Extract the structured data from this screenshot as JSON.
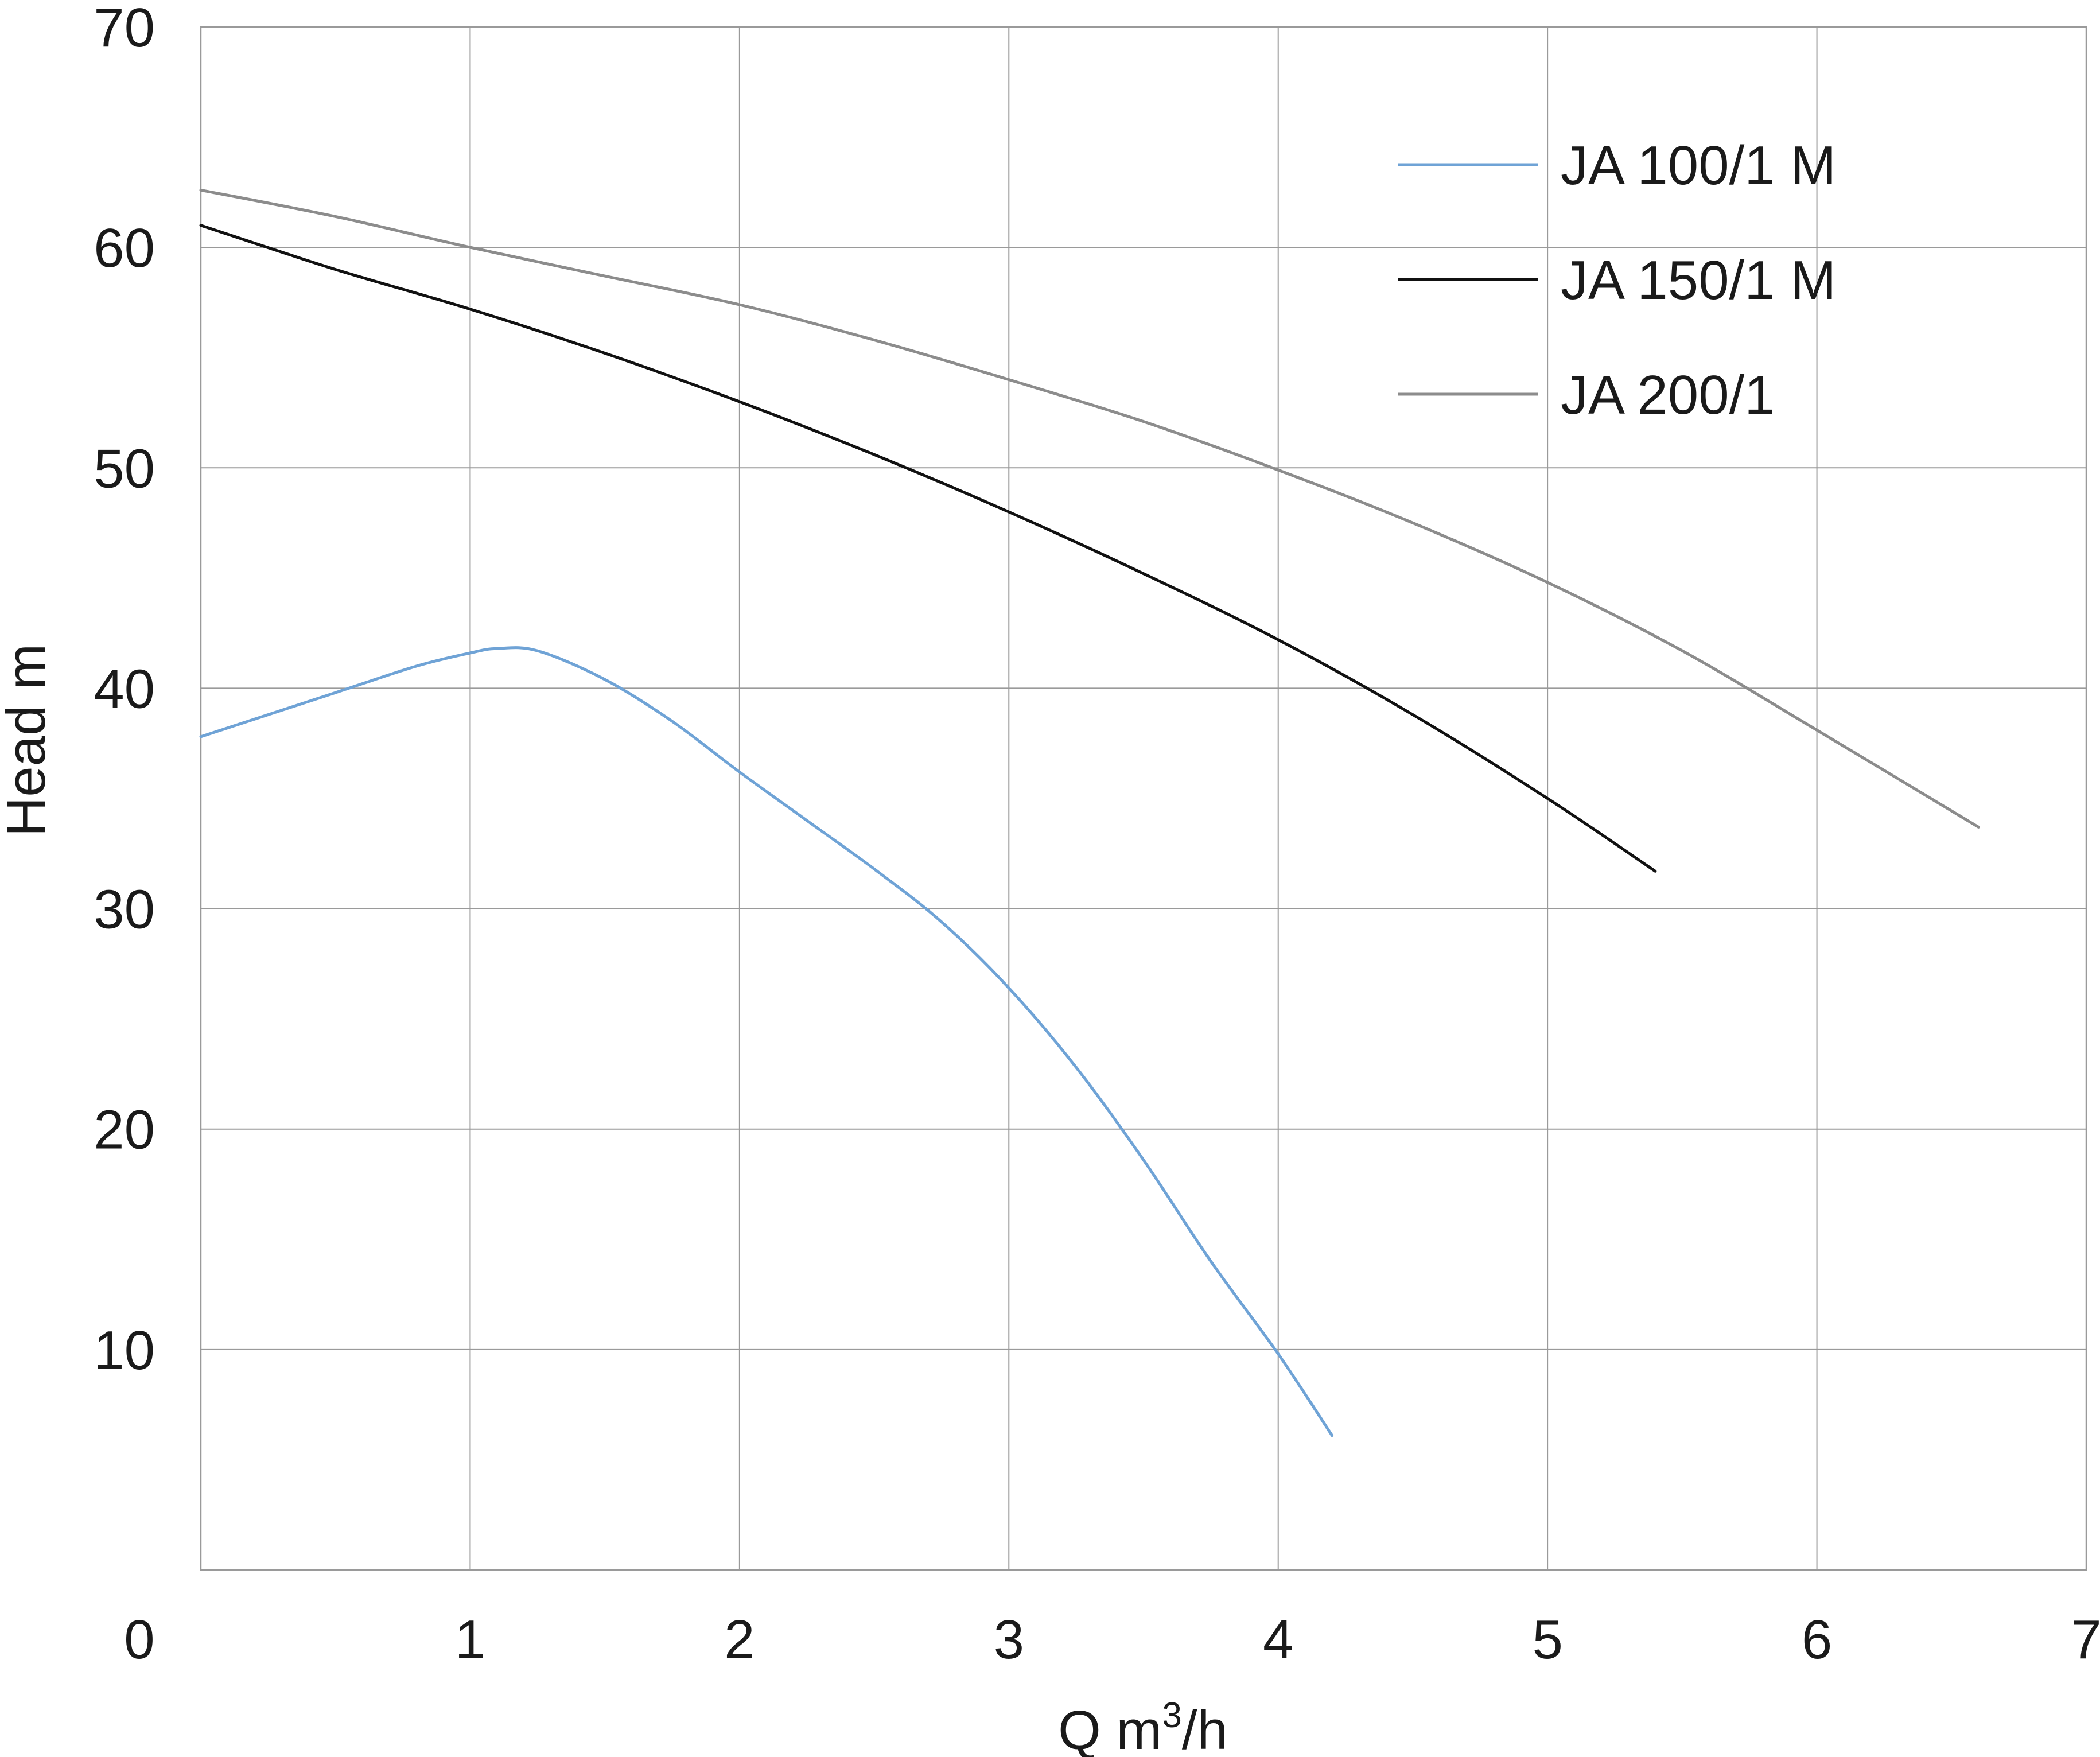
{
  "chart_data": {
    "type": "line",
    "xlabel": "Q m³/h",
    "xlabel_parts": {
      "base": "Q m",
      "sup": "3",
      "tail": "/h"
    },
    "ylabel": "Head m",
    "xlim": [
      0,
      7
    ],
    "ylim": [
      0,
      70
    ],
    "x_ticks": [
      0,
      1,
      2,
      3,
      4,
      5,
      6,
      7
    ],
    "y_ticks": [
      10,
      20,
      30,
      40,
      50,
      60,
      70
    ],
    "x_tick_labels": [
      "0",
      "1",
      "2",
      "3",
      "4",
      "5",
      "6",
      "7"
    ],
    "y_tick_labels": [
      "10",
      "20",
      "30",
      "40",
      "50",
      "60",
      "70"
    ],
    "grid": true,
    "legend_position": "top-right",
    "series": [
      {
        "name": "JA 100/1 M",
        "color": "#6fa3d6",
        "points": [
          [
            0,
            37.8
          ],
          [
            0.5,
            39.8
          ],
          [
            0.8,
            41.0
          ],
          [
            1.0,
            41.6
          ],
          [
            1.1,
            41.8
          ],
          [
            1.25,
            41.7
          ],
          [
            1.5,
            40.4
          ],
          [
            1.75,
            38.5
          ],
          [
            2.0,
            36.2
          ],
          [
            2.25,
            34.0
          ],
          [
            2.5,
            31.8
          ],
          [
            2.75,
            29.4
          ],
          [
            3.0,
            26.4
          ],
          [
            3.25,
            22.8
          ],
          [
            3.5,
            18.6
          ],
          [
            3.75,
            14.0
          ],
          [
            4.0,
            9.8
          ],
          [
            4.2,
            6.1
          ]
        ]
      },
      {
        "name": "JA 150/1 M",
        "color": "#111111",
        "points": [
          [
            0,
            61.0
          ],
          [
            0.5,
            59.0
          ],
          [
            1.0,
            57.2
          ],
          [
            1.5,
            55.2
          ],
          [
            2.0,
            53.0
          ],
          [
            2.5,
            50.6
          ],
          [
            3.0,
            48.0
          ],
          [
            3.5,
            45.2
          ],
          [
            4.0,
            42.2
          ],
          [
            4.5,
            38.8
          ],
          [
            5.0,
            35.0
          ],
          [
            5.4,
            31.7
          ]
        ]
      },
      {
        "name": "JA 200/1",
        "color": "#8c8c8c",
        "points": [
          [
            0,
            62.6
          ],
          [
            0.5,
            61.4
          ],
          [
            1.0,
            60.0
          ],
          [
            1.5,
            58.7
          ],
          [
            2.0,
            57.4
          ],
          [
            2.5,
            55.8
          ],
          [
            3.0,
            54.0
          ],
          [
            3.5,
            52.1
          ],
          [
            4.0,
            49.9
          ],
          [
            4.5,
            47.5
          ],
          [
            5.0,
            44.8
          ],
          [
            5.5,
            41.7
          ],
          [
            6.0,
            38.1
          ],
          [
            6.6,
            33.7
          ]
        ]
      }
    ]
  }
}
